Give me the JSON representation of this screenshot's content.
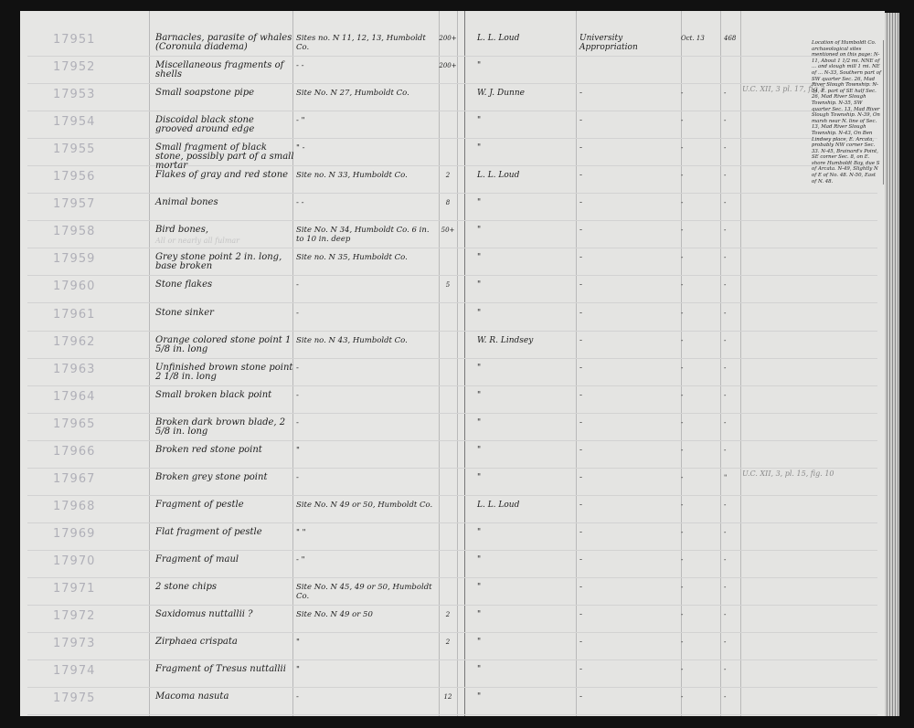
{
  "ledger": {
    "rows": [
      {
        "number": "17951",
        "description": "Barnacles, parasite of whales (Coronula diadema)",
        "locality": "Sites no. N 11, 12, 13, Humboldt Co.",
        "count": "200+",
        "collector": "L. L. Loud",
        "acquisition": "University Appropriation",
        "date": "Oct. 13",
        "accession": "468",
        "remarks": ""
      },
      {
        "number": "17952",
        "description": "Miscellaneous fragments of shells",
        "locality": "-          -",
        "count": "200+",
        "collector": "\"",
        "acquisition": "",
        "date": "",
        "accession": "",
        "remarks": ""
      },
      {
        "number": "17953",
        "description": "Small soapstone pipe",
        "locality": "Site No. N 27, Humboldt Co.",
        "count": "",
        "collector": "W. J. Dunne",
        "acquisition": "-",
        "date": "-",
        "accession": "-",
        "remarks": "U.C. XII, 3 pl. 17, fig 3"
      },
      {
        "number": "17954",
        "description": "Discoidal black stone grooved around edge",
        "locality": "-          \"",
        "count": "",
        "collector": "\"",
        "acquisition": "-",
        "date": "-",
        "accession": "-",
        "remarks": ""
      },
      {
        "number": "17955",
        "description": "Small fragment of black stone, possibly part of a small mortar",
        "locality": "\"          -",
        "count": "",
        "collector": "\"",
        "acquisition": "-",
        "date": "-",
        "accession": "-",
        "remarks": ""
      },
      {
        "number": "17956",
        "description": "Flakes of gray and red stone",
        "locality": "Site no. N 33, Humboldt Co.",
        "count": "2",
        "collector": "L. L. Loud",
        "acquisition": "-",
        "date": "-",
        "accession": "-",
        "remarks": ""
      },
      {
        "number": "17957",
        "description": "Animal bones",
        "locality": "-          -",
        "count": "8",
        "collector": "\"",
        "acquisition": "-",
        "date": "-",
        "accession": "-",
        "remarks": ""
      },
      {
        "number": "17958",
        "description": "Bird bones,",
        "note": "All or nearly all fulmar",
        "locality": "Site No. N 34, Humboldt Co. 6 in. to 10 in. deep",
        "count": "50+",
        "collector": "\"",
        "acquisition": "-",
        "date": "-",
        "accession": "-",
        "remarks": ""
      },
      {
        "number": "17959",
        "description": "Grey stone point 2 in. long, base broken",
        "locality": "Site no. N 35, Humboldt Co.",
        "count": "",
        "collector": "\"",
        "acquisition": "-",
        "date": "-",
        "accession": "-",
        "remarks": ""
      },
      {
        "number": "17960",
        "description": "Stone flakes",
        "locality": "-",
        "count": "5",
        "collector": "\"",
        "acquisition": "-",
        "date": "-",
        "accession": "-",
        "remarks": ""
      },
      {
        "number": "17961",
        "description": "Stone sinker",
        "locality": "-",
        "count": "",
        "collector": "\"",
        "acquisition": "-",
        "date": "-",
        "accession": "-",
        "remarks": ""
      },
      {
        "number": "17962",
        "description": "Orange colored stone point 1 5/8 in. long",
        "locality": "Site no. N 43, Humboldt Co.",
        "count": "",
        "collector": "W. R. Lindsey",
        "acquisition": "-",
        "date": "-",
        "accession": "-",
        "remarks": ""
      },
      {
        "number": "17963",
        "description": "Unfinished brown stone point 2 1/8 in. long",
        "locality": "-",
        "count": "",
        "collector": "\"",
        "acquisition": "-",
        "date": "-",
        "accession": "-",
        "remarks": ""
      },
      {
        "number": "17964",
        "description": "Small broken black point",
        "locality": "-",
        "count": "",
        "collector": "\"",
        "acquisition": "-",
        "date": "-",
        "accession": "-",
        "remarks": ""
      },
      {
        "number": "17965",
        "description": "Broken dark brown blade, 2 5/8 in. long",
        "locality": "-",
        "count": "",
        "collector": "\"",
        "acquisition": "-",
        "date": "-",
        "accession": "-",
        "remarks": ""
      },
      {
        "number": "17966",
        "description": "Broken red stone point",
        "locality": "\"",
        "count": "",
        "collector": "\"",
        "acquisition": "-",
        "date": "-",
        "accession": "-",
        "remarks": ""
      },
      {
        "number": "17967",
        "description": "Broken grey stone point",
        "locality": "-",
        "count": "",
        "collector": "\"",
        "acquisition": "-",
        "date": "-",
        "accession": "\"",
        "remarks": "U.C. XII, 3, pl. 15, fig. 10"
      },
      {
        "number": "17968",
        "description": "Fragment of pestle",
        "locality": "Site No. N 49 or 50, Humboldt Co.",
        "count": "",
        "collector": "L. L. Loud",
        "acquisition": "-",
        "date": "-",
        "accession": "-",
        "remarks": ""
      },
      {
        "number": "17969",
        "description": "Flat fragment of pestle",
        "locality": "\"          \"",
        "count": "",
        "collector": "\"",
        "acquisition": "-",
        "date": "-",
        "accession": "-",
        "remarks": ""
      },
      {
        "number": "17970",
        "description": "Fragment of maul",
        "locality": "-          \"",
        "count": "",
        "collector": "\"",
        "acquisition": "-",
        "date": "-",
        "accession": "-",
        "remarks": ""
      },
      {
        "number": "17971",
        "description": "2 stone chips",
        "locality": "Site No. N 45, 49 or 50, Humboldt Co.",
        "count": "",
        "collector": "\"",
        "acquisition": "-",
        "date": "-",
        "accession": "-",
        "remarks": ""
      },
      {
        "number": "17972",
        "description": "Saxidomus nuttallii ?",
        "locality": "Site No. N 49 or 50",
        "count": "2",
        "collector": "\"",
        "acquisition": "-",
        "date": "-",
        "accession": "-",
        "remarks": ""
      },
      {
        "number": "17973",
        "description": "Zirphaea crispata",
        "locality": "\"",
        "count": "2",
        "collector": "\"",
        "acquisition": "-",
        "date": "-",
        "accession": "-",
        "remarks": ""
      },
      {
        "number": "17974",
        "description": "Fragment of Tresus nuttallii",
        "locality": "\"",
        "count": "",
        "collector": "\"",
        "acquisition": "-",
        "date": "-",
        "accession": "-",
        "remarks": ""
      },
      {
        "number": "17975",
        "description": "Macoma nasuta",
        "locality": "-",
        "count": "12",
        "collector": "\"",
        "acquisition": "-",
        "date": "-",
        "accession": "-",
        "remarks": ""
      }
    ],
    "side_note": "Location of Humboldt Co. archaeological sites mentioned on this page: N-11, About 1 1/2 mi. NNE of ... and slough mill 1 mi. NE of ... N-33, Southern part of SW quarter Sec. 26, Mad River Slough Township. N-34, E. part of SE half Sec. 26, Mad River Slough Township. N-35, SW quarter Sec. 13, Mad River Slough Township. N-39, On marsh near N. line of Sec. 13, Mad River Slough Township. N-43, On Ben Lindsey place, E. Arcata, probably NW corner Sec. 33. N-45, Brainard's Point, SE corner Sec. 8, on E. shore Humboldt Bay, due S of Arcata. N-49, Slightly N of E of No. 48. N-50, East of N. 48."
  }
}
